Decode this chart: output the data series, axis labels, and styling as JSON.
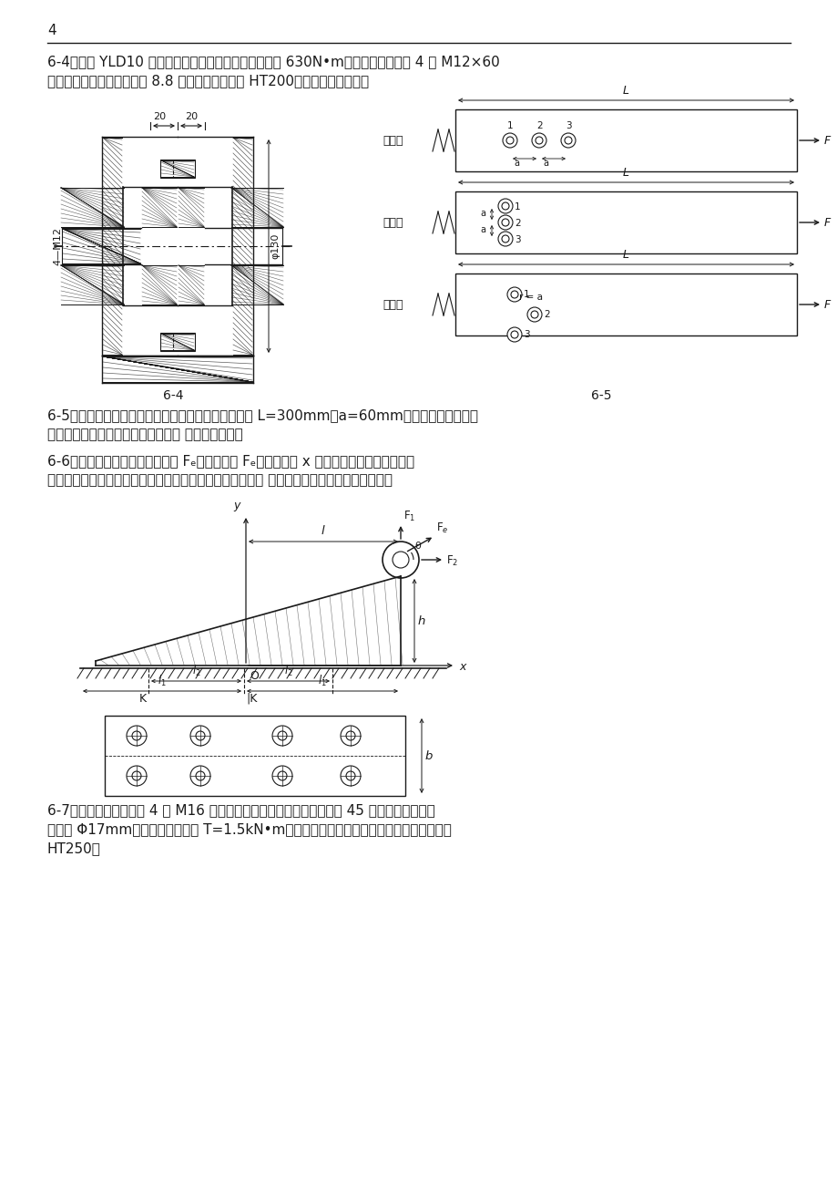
{
  "page_number": "4",
  "bg_color": "#ffffff",
  "line_color": "#1a1a1a",
  "para1": "6-4、图示 YLD10 凸缘联轴器，允许传递的最大转矩为 630N•m，两半联轴器采用 4 个 M12×60",
  "para1b": "的鐓制孔螺栓，性能等级为 8.8 级，联轴器材料为 HT200，试校核联接强度。",
  "label64": "6-4",
  "label65": "6-5",
  "para2": "6-5、鐓制孔用螺栓组联接的三种方案如图所示，已知 L=300mm，a=60mm，试求三个方案中，",
  "para2b": "受力最大的螺栓所受的力各为多少？ 哪个方案较好？",
  "para3": "6-6、图示底板螺栓组联接受外力 Fₑ作用，外力 Fₑ作用在包含 x 轴并垂直于底板结合面的平",
  "para3b": "面内。试分析螺栓组受力情况，并判断哪个螺栓受载最大？ 保证联接安全的必要条件有哪些？",
  "para4": "6-7、图示刚性联轴器取 4 个 M16 小六角头鐓制孔用螺栓，螺栓材料为 45 锂，受剪面处螺栓",
  "para4b": "直径为 Φ17mm，其许用最大扇矩 T=1.5kN•m（设为静载荷），试校核其强度。联轴器材料",
  "para4c": "HT250。",
  "fangan1": "方案一",
  "fangan2": "方案二",
  "fangan3": "方案三"
}
